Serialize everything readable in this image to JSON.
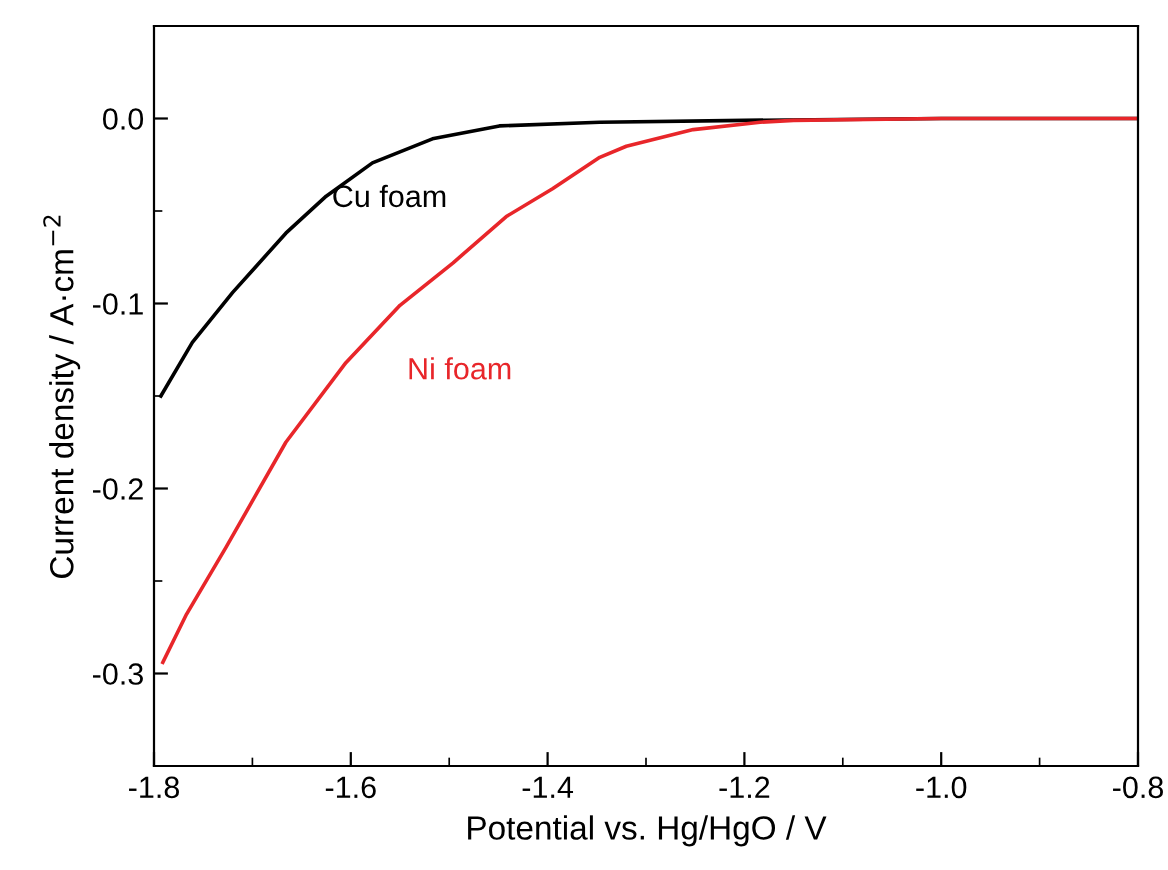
{
  "chart_data": {
    "type": "line",
    "xlabel": "Potential vs. Hg/HgO / V",
    "ylabel": "Current density / A·cm$^{−2}$",
    "xlim": [
      -1.8,
      -0.8
    ],
    "xticks": [
      -1.8,
      -1.6,
      -1.4,
      -1.2,
      {
        "value": -1.0,
        "label": "-1.0"
      },
      -0.8
    ],
    "ylim": [
      -0.35,
      0.05
    ],
    "yticks": [
      {
        "value": 0.0,
        "label": "0.0"
      },
      -0.1,
      -0.2,
      -0.3
    ],
    "grid": false,
    "legend": false,
    "marker": "none",
    "line_style": "solid",
    "series": [
      {
        "name": "Cu foam",
        "color": "#000000",
        "x": [
          -1.793,
          -1.761,
          -1.72,
          -1.666,
          -1.625,
          -1.578,
          -1.517,
          -1.449,
          -1.347,
          -1.2,
          -1.0,
          -0.8
        ],
        "values": [
          -0.15,
          -0.121,
          -0.094,
          -0.062,
          -0.042,
          -0.024,
          -0.011,
          -0.004,
          -0.002,
          -0.001,
          0.0,
          0.0
        ]
      },
      {
        "name": "Ni foam",
        "color": "#e8262a",
        "x": [
          -1.791,
          -1.767,
          -1.727,
          -1.666,
          -1.605,
          -1.55,
          -1.496,
          -1.442,
          -1.395,
          -1.347,
          -1.32,
          -1.252,
          -1.184,
          -1.15,
          -1.0,
          -0.8
        ],
        "values": [
          -0.294,
          -0.268,
          -0.232,
          -0.175,
          -0.132,
          -0.101,
          -0.078,
          -0.053,
          -0.038,
          -0.021,
          -0.015,
          -0.006,
          -0.002,
          -0.001,
          0.0,
          0.0
        ]
      }
    ]
  }
}
